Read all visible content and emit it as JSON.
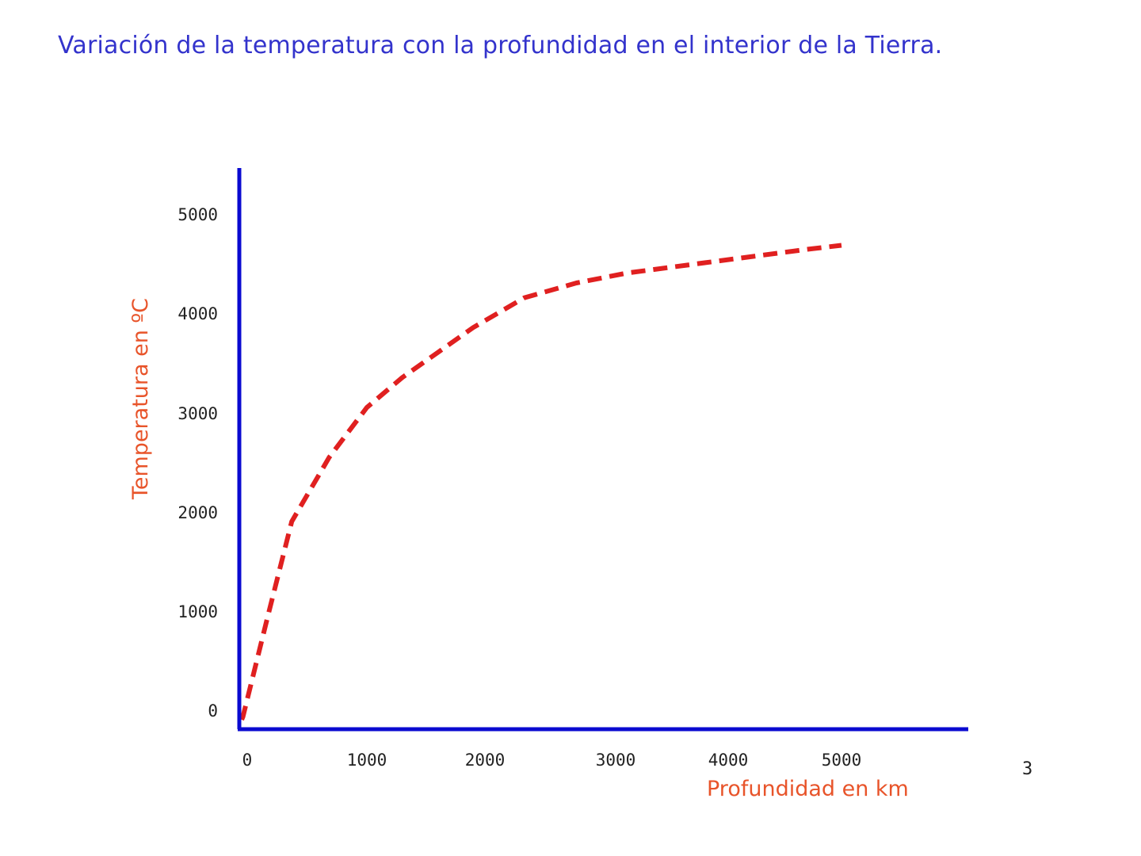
{
  "slide": {
    "title": "Variación de la temperatura con la profundidad en el interior de la Tierra.",
    "page_number": "3"
  },
  "colors": {
    "title": "#3333cc",
    "axis": "#0a0ad0",
    "series": "#e02020",
    "axis_label": "#e8542a"
  },
  "chart_data": {
    "type": "line",
    "title": "",
    "xlabel": "Profundidad en km",
    "ylabel": "Temperatura en  ºC",
    "x_ticks": [
      "0",
      "1000",
      "2000",
      "3000",
      "4000",
      "5000"
    ],
    "y_ticks": [
      "0",
      "1000",
      "2000",
      "3000",
      "4000",
      "5000"
    ],
    "xlim": [
      0,
      5000
    ],
    "ylim": [
      0,
      5000
    ],
    "grid": false,
    "legend": "none",
    "series": [
      {
        "style": "dashed",
        "x": [
          0,
          10,
          200,
          400,
          700,
          1000,
          1300,
          1600,
          1900,
          2300,
          2700,
          3100,
          3500,
          3900,
          4300,
          4700,
          5000
        ],
        "y": [
          0,
          30,
          1000,
          2000,
          2650,
          3150,
          3450,
          3700,
          3950,
          4250,
          4400,
          4500,
          4560,
          4620,
          4680,
          4740,
          4780
        ]
      }
    ]
  }
}
